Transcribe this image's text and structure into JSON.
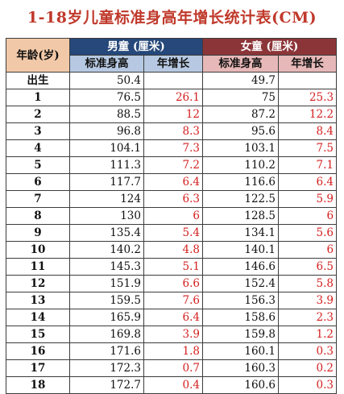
{
  "title": "1-18岁儿童标准身高年增长统计表(CM)",
  "headers": {
    "age": "年龄(岁)",
    "boy_group": "男童 (厘米)",
    "girl_group": "女童 (厘米)",
    "height": "标准身高",
    "growth": "年增长"
  },
  "rows": [
    {
      "age": "出生",
      "boy_h": "50.4",
      "boy_g": "",
      "girl_h": "49.7",
      "girl_g": ""
    },
    {
      "age": "1",
      "boy_h": "76.5",
      "boy_g": "26.1",
      "girl_h": "75",
      "girl_g": "25.3"
    },
    {
      "age": "2",
      "boy_h": "88.5",
      "boy_g": "12",
      "girl_h": "87.2",
      "girl_g": "12.2"
    },
    {
      "age": "3",
      "boy_h": "96.8",
      "boy_g": "8.3",
      "girl_h": "95.6",
      "girl_g": "8.4"
    },
    {
      "age": "4",
      "boy_h": "104.1",
      "boy_g": "7.3",
      "girl_h": "103.1",
      "girl_g": "7.5"
    },
    {
      "age": "5",
      "boy_h": "111.3",
      "boy_g": "7.2",
      "girl_h": "110.2",
      "girl_g": "7.1"
    },
    {
      "age": "6",
      "boy_h": "117.7",
      "boy_g": "6.4",
      "girl_h": "116.6",
      "girl_g": "6.4"
    },
    {
      "age": "7",
      "boy_h": "124",
      "boy_g": "6.3",
      "girl_h": "122.5",
      "girl_g": "5.9"
    },
    {
      "age": "8",
      "boy_h": "130",
      "boy_g": "6",
      "girl_h": "128.5",
      "girl_g": "6"
    },
    {
      "age": "9",
      "boy_h": "135.4",
      "boy_g": "5.4",
      "girl_h": "134.1",
      "girl_g": "5.6"
    },
    {
      "age": "10",
      "boy_h": "140.2",
      "boy_g": "4.8",
      "girl_h": "140.1",
      "girl_g": "6"
    },
    {
      "age": "11",
      "boy_h": "145.3",
      "boy_g": "5.1",
      "girl_h": "146.6",
      "girl_g": "6.5"
    },
    {
      "age": "12",
      "boy_h": "151.9",
      "boy_g": "6.6",
      "girl_h": "152.4",
      "girl_g": "5.8"
    },
    {
      "age": "13",
      "boy_h": "159.5",
      "boy_g": "7.6",
      "girl_h": "156.3",
      "girl_g": "3.9"
    },
    {
      "age": "14",
      "boy_h": "165.9",
      "boy_g": "6.4",
      "girl_h": "158.6",
      "girl_g": "2.3"
    },
    {
      "age": "15",
      "boy_h": "169.8",
      "boy_g": "3.9",
      "girl_h": "159.8",
      "girl_g": "1.2"
    },
    {
      "age": "16",
      "boy_h": "171.6",
      "boy_g": "1.8",
      "girl_h": "160.1",
      "girl_g": "0.3"
    },
    {
      "age": "17",
      "boy_h": "172.3",
      "boy_g": "0.7",
      "girl_h": "160.3",
      "girl_g": "0.2"
    },
    {
      "age": "18",
      "boy_h": "172.7",
      "boy_g": "0.4",
      "girl_h": "160.6",
      "girl_g": "0.3"
    }
  ]
}
